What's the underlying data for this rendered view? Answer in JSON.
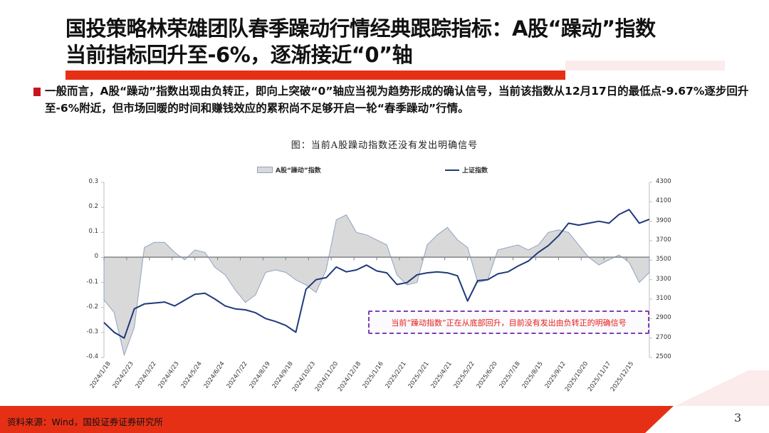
{
  "slide": {
    "title_line1": "国投策略林荣雄团队春季躁动行情经典跟踪指标：A股“躁动”指数",
    "title_line2": "当前指标回升至-6%，逐渐接近“0”轴",
    "description": "一般而言，A股“躁动”指数出现由负转正，即向上突破“0”轴应当视为趋势形成的确认信号，当前该指数从12月17日的最低点-9.67%逐步回升至-6%附近，但市场回暖的时间和赚钱效应的累积尚不足够开启一轮“春季躁动”行情。",
    "footer_source": "资料来源：Wind，国投证券证券研究所",
    "page_number": "3",
    "colors": {
      "accent_red": "#e63016",
      "bullet_red": "#c8161d",
      "area_fill": "#d9d9d9",
      "area_stroke": "#8ea3c2",
      "line_blue": "#1f3a7a",
      "annotation_border": "#7e3fb3",
      "annotation_text": "#e81c1c"
    }
  },
  "chart_data": {
    "type": "area+line",
    "title": "图：当前A股躁动指数还没有发出明确信号",
    "legend": [
      "A股“躁动”指数",
      "上证指数"
    ],
    "legend_position": "top",
    "grid": false,
    "xlabel": "",
    "ylabel_left": "",
    "ylabel_right": "",
    "ylim_left": [
      -0.4,
      0.3
    ],
    "ylim_right": [
      2500,
      4300
    ],
    "yticks_left": [
      "0.3",
      "0.2",
      "0.1",
      "0",
      "-0.1",
      "-0.2",
      "-0.3",
      "-0.4"
    ],
    "yticks_right": [
      "4300",
      "4100",
      "3900",
      "3700",
      "3500",
      "3300",
      "3100",
      "2900",
      "2700",
      "2500"
    ],
    "categories": [
      "2024/1/18",
      "2024/2/23",
      "2024/3/22",
      "2024/4/23",
      "2024/5/24",
      "2024/6/24",
      "2024/7/22",
      "2024/8/19",
      "2024/9/18",
      "2024/10/23",
      "2024/11/20",
      "2024/12/18",
      "2025/1/16",
      "2025/2/21",
      "2025/3/21",
      "2025/4/21",
      "2025/5/22",
      "2025/6/20",
      "2025/7/18",
      "2025/8/15",
      "2025/9/12",
      "2025/10/20",
      "2025/11/17",
      "2025/12/15"
    ],
    "series": [
      {
        "name": "A股“躁动”指数",
        "axis": "left",
        "type": "area",
        "values": [
          -0.17,
          -0.22,
          -0.39,
          -0.28,
          0.04,
          0.06,
          0.06,
          0.02,
          -0.01,
          0.03,
          0.02,
          -0.04,
          -0.07,
          -0.13,
          -0.18,
          -0.15,
          -0.06,
          -0.05,
          -0.06,
          -0.09,
          -0.11,
          -0.14,
          -0.05,
          0.15,
          0.17,
          0.1,
          0.09,
          0.07,
          0.05,
          -0.07,
          -0.11,
          -0.1,
          0.05,
          0.09,
          0.12,
          0.07,
          0.04,
          -0.1,
          -0.09,
          0.03,
          0.04,
          0.05,
          0.03,
          0.05,
          0.1,
          0.11,
          0.1,
          0.05,
          0.0,
          -0.03,
          -0.01,
          0.01,
          -0.02,
          -0.1,
          -0.06
        ]
      },
      {
        "name": "上证指数",
        "axis": "right",
        "type": "line",
        "values": [
          2860,
          2760,
          2700,
          3000,
          3050,
          3060,
          3070,
          3030,
          3090,
          3150,
          3160,
          3100,
          3030,
          3000,
          2990,
          2960,
          2900,
          2870,
          2830,
          2760,
          3200,
          3300,
          3320,
          3430,
          3380,
          3400,
          3450,
          3390,
          3370,
          3250,
          3270,
          3350,
          3370,
          3380,
          3370,
          3340,
          3080,
          3290,
          3300,
          3360,
          3380,
          3440,
          3490,
          3580,
          3650,
          3750,
          3880,
          3860,
          3880,
          3900,
          3880,
          3970,
          4020,
          3880,
          3920
        ]
      }
    ],
    "annotation": "当前“躁动指数”正在从底部回升，目前没有发出由负转正的明确信号"
  }
}
